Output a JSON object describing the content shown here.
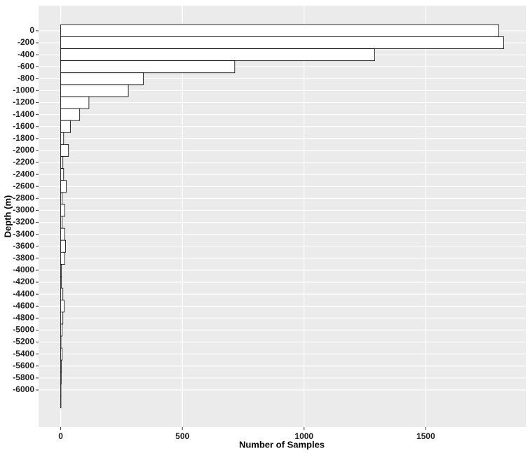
{
  "chart_data": {
    "type": "histogram",
    "orientation": "horizontal",
    "x_label": "Number of Samples",
    "y_label": "Depth (m)",
    "bins": [
      100,
      -100,
      -300,
      -500,
      -700,
      -900,
      -1100,
      -1300,
      -1500,
      -1700,
      -1900,
      -2100,
      -2300,
      -2500,
      -2700,
      -2900,
      -3100,
      -3300,
      -3500,
      -3700,
      -3900,
      -4100,
      -4300,
      -4500,
      -4700,
      -4900,
      -5100,
      -5300,
      -5500,
      -5700,
      -5900,
      -6100,
      -6300
    ],
    "counts": [
      1800,
      1820,
      1290,
      715,
      340,
      278,
      116,
      78,
      40,
      12,
      32,
      9,
      12,
      23,
      6,
      17,
      6,
      17,
      20,
      17,
      3,
      3,
      9,
      14,
      9,
      6,
      1,
      6,
      3,
      2,
      1,
      1
    ],
    "color": "#ffffff",
    "edge_color": "#000000",
    "xlim": [
      -91,
      1911
    ],
    "xticks": [
      0,
      500,
      1000,
      1500
    ],
    "ylim": [
      -6620,
      420
    ],
    "yticks": [
      0,
      -200,
      -400,
      -600,
      -800,
      -1000,
      -1200,
      -1400,
      -1600,
      -1800,
      -2000,
      -2200,
      -2400,
      -2600,
      -2800,
      -3000,
      -3200,
      -3400,
      -3600,
      -3800,
      -4000,
      -4200,
      -4400,
      -4600,
      -4800,
      -5000,
      -5200,
      -5400,
      -5600,
      -5800,
      -6000
    ],
    "grid": true
  }
}
